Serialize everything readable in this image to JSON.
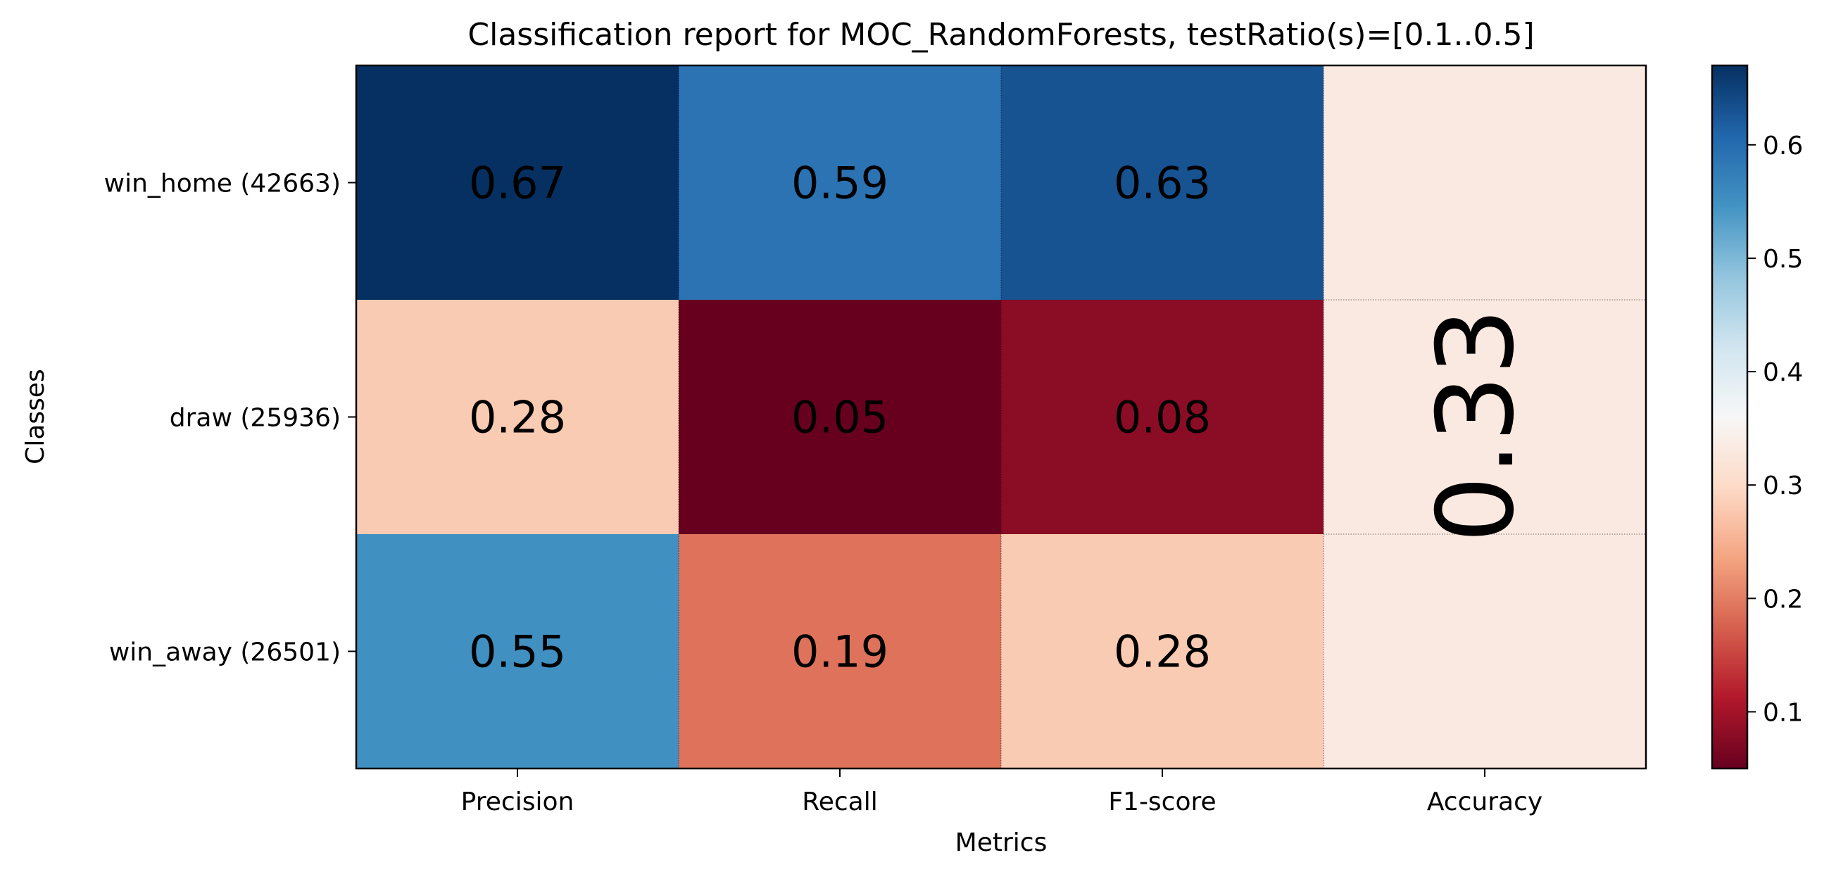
{
  "chart_data": {
    "type": "heatmap",
    "title": "Classification report for MOC_RandomForests, testRatio(s)=[0.1..0.5]",
    "xlabel": "Metrics",
    "ylabel": "Classes",
    "x_categories": [
      "Precision",
      "Recall",
      "F1-score"
    ],
    "y_categories": [
      "win_home (42663)",
      "draw (25936)",
      "win_away (26501)"
    ],
    "values": [
      [
        0.67,
        0.59,
        0.63
      ],
      [
        0.28,
        0.05,
        0.08
      ],
      [
        0.55,
        0.19,
        0.28
      ]
    ],
    "value_labels": [
      [
        "0.67",
        "0.59",
        "0.63"
      ],
      [
        "0.28",
        "0.05",
        "0.08"
      ],
      [
        "0.55",
        "0.19",
        "0.28"
      ]
    ],
    "accuracy": {
      "label": "Accuracy",
      "value": 0.33,
      "value_label": "0.33"
    },
    "colormap": "RdBu",
    "vmin": 0.05,
    "vmax": 0.67,
    "colorbar_ticks": [
      0.1,
      0.2,
      0.3,
      0.4,
      0.5,
      0.6
    ],
    "colorbar_tick_labels": [
      "0.1",
      "0.2",
      "0.3",
      "0.4",
      "0.5",
      "0.6"
    ]
  }
}
